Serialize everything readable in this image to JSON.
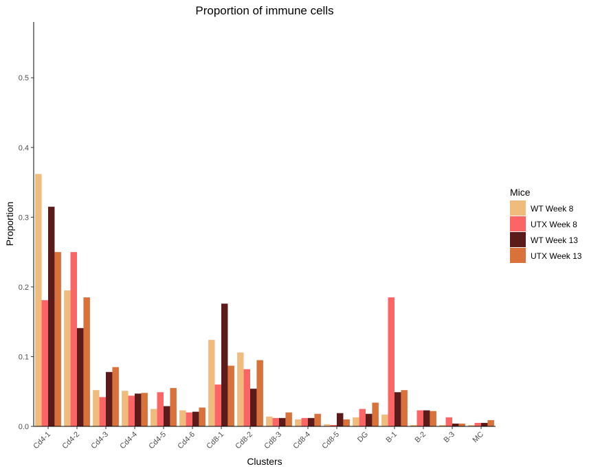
{
  "chart_data": {
    "type": "bar",
    "title": "Proportion of immune cells",
    "xlabel": "Clusters",
    "ylabel": "Proportion",
    "ylim": [
      0,
      0.58
    ],
    "yticks": [
      "0.0",
      "0.1",
      "0.2",
      "0.3",
      "0.4",
      "0.5"
    ],
    "grid": false,
    "legend_title": "Mice",
    "legend_position": "right",
    "categories": [
      "Cd4-1",
      "Cd4-2",
      "Cd4-3",
      "Cd4-4",
      "Cd4-5",
      "Cd4-6",
      "Cd8-1",
      "Cd8-2",
      "Cd8-3",
      "Cd8-4",
      "Cd8-5",
      "DG",
      "B-1",
      "B-2",
      "B-3",
      "MC"
    ],
    "series": [
      {
        "name": "WT Week 8",
        "color": "#F0BC7E",
        "values": [
          0.362,
          0.195,
          0.052,
          0.051,
          0.025,
          0.023,
          0.124,
          0.106,
          0.014,
          0.01,
          0.003,
          0.013,
          0.017,
          0.002,
          0.002,
          0.002
        ]
      },
      {
        "name": "UTX Week 8",
        "color": "#FB6566",
        "values": [
          0.181,
          0.25,
          0.042,
          0.044,
          0.049,
          0.02,
          0.06,
          0.082,
          0.012,
          0.012,
          0.002,
          0.025,
          0.185,
          0.023,
          0.013,
          0.005
        ]
      },
      {
        "name": "WT Week 13",
        "color": "#5C1B1B",
        "values": [
          0.315,
          0.141,
          0.078,
          0.047,
          0.029,
          0.021,
          0.176,
          0.054,
          0.012,
          0.012,
          0.019,
          0.018,
          0.049,
          0.023,
          0.004,
          0.005
        ]
      },
      {
        "name": "UTX Week 13",
        "color": "#D9713A",
        "values": [
          0.25,
          0.185,
          0.085,
          0.048,
          0.055,
          0.027,
          0.087,
          0.095,
          0.02,
          0.018,
          0.01,
          0.034,
          0.052,
          0.022,
          0.004,
          0.009
        ]
      }
    ]
  }
}
